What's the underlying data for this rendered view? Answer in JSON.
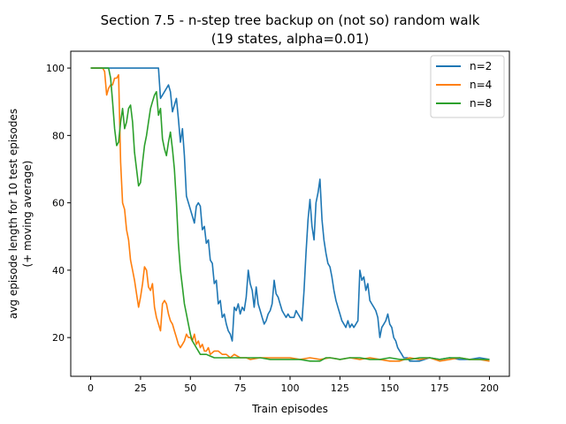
{
  "chart_data": {
    "type": "line",
    "title": "Section 7.5 - n-step tree backup on (not so) random walk",
    "subtitle": "(19 states, alpha=0.01)",
    "xlabel": "Train episodes",
    "ylabel_line1": "avg episode length for 10 test episodes",
    "ylabel_line2": "(+ moving average)",
    "xlim": [
      -10,
      210
    ],
    "ylim": [
      8.5,
      105
    ],
    "xticks": [
      0,
      25,
      50,
      75,
      100,
      125,
      150,
      175,
      200
    ],
    "yticks": [
      20,
      40,
      60,
      80,
      100
    ],
    "grid": false,
    "legend_position": "top-right",
    "series": [
      {
        "name": "n=2",
        "color": "#1f77b4",
        "points": [
          [
            0,
            100
          ],
          [
            10,
            100
          ],
          [
            20,
            100
          ],
          [
            30,
            100
          ],
          [
            34,
            100
          ],
          [
            35,
            91
          ],
          [
            37,
            93
          ],
          [
            39,
            95
          ],
          [
            40,
            93
          ],
          [
            41,
            87
          ],
          [
            42,
            89
          ],
          [
            43,
            91
          ],
          [
            44,
            85
          ],
          [
            45,
            78
          ],
          [
            46,
            82
          ],
          [
            47,
            74
          ],
          [
            48,
            62
          ],
          [
            50,
            58
          ],
          [
            52,
            54
          ],
          [
            53,
            59
          ],
          [
            54,
            60
          ],
          [
            55,
            59
          ],
          [
            56,
            52
          ],
          [
            57,
            53
          ],
          [
            58,
            48
          ],
          [
            59,
            49
          ],
          [
            60,
            43
          ],
          [
            61,
            42
          ],
          [
            62,
            36
          ],
          [
            63,
            37
          ],
          [
            64,
            30
          ],
          [
            65,
            31
          ],
          [
            66,
            26
          ],
          [
            67,
            27
          ],
          [
            68,
            24
          ],
          [
            69,
            22
          ],
          [
            70,
            21
          ],
          [
            71,
            19
          ],
          [
            72,
            29
          ],
          [
            73,
            28
          ],
          [
            74,
            30
          ],
          [
            75,
            27
          ],
          [
            76,
            29
          ],
          [
            77,
            28
          ],
          [
            78,
            32
          ],
          [
            79,
            40
          ],
          [
            80,
            36
          ],
          [
            81,
            34
          ],
          [
            82,
            29
          ],
          [
            83,
            35
          ],
          [
            84,
            30
          ],
          [
            85,
            28
          ],
          [
            86,
            26
          ],
          [
            87,
            24
          ],
          [
            88,
            25
          ],
          [
            89,
            27
          ],
          [
            90,
            28
          ],
          [
            91,
            30
          ],
          [
            92,
            37
          ],
          [
            93,
            33
          ],
          [
            94,
            32
          ],
          [
            95,
            30
          ],
          [
            96,
            28
          ],
          [
            97,
            27
          ],
          [
            98,
            26
          ],
          [
            99,
            27
          ],
          [
            100,
            26
          ],
          [
            102,
            26
          ],
          [
            103,
            28
          ],
          [
            104,
            27
          ],
          [
            105,
            26
          ],
          [
            106,
            25
          ],
          [
            107,
            34
          ],
          [
            108,
            45
          ],
          [
            109,
            55
          ],
          [
            110,
            61
          ],
          [
            111,
            53
          ],
          [
            112,
            49
          ],
          [
            113,
            60
          ],
          [
            114,
            63
          ],
          [
            115,
            67
          ],
          [
            116,
            55
          ],
          [
            117,
            49
          ],
          [
            118,
            45
          ],
          [
            119,
            42
          ],
          [
            120,
            41
          ],
          [
            121,
            38
          ],
          [
            122,
            34
          ],
          [
            123,
            31
          ],
          [
            124,
            29
          ],
          [
            125,
            27
          ],
          [
            126,
            25
          ],
          [
            127,
            24
          ],
          [
            128,
            23
          ],
          [
            129,
            25
          ],
          [
            130,
            23
          ],
          [
            131,
            24
          ],
          [
            132,
            23
          ],
          [
            133,
            24
          ],
          [
            134,
            25
          ],
          [
            135,
            40
          ],
          [
            136,
            37
          ],
          [
            137,
            38
          ],
          [
            138,
            34
          ],
          [
            139,
            36
          ],
          [
            140,
            31
          ],
          [
            141,
            30
          ],
          [
            142,
            29
          ],
          [
            143,
            28
          ],
          [
            144,
            26
          ],
          [
            145,
            20
          ],
          [
            146,
            23
          ],
          [
            147,
            24
          ],
          [
            148,
            25
          ],
          [
            149,
            27
          ],
          [
            150,
            24
          ],
          [
            151,
            23
          ],
          [
            152,
            20
          ],
          [
            153,
            19
          ],
          [
            154,
            17
          ],
          [
            155,
            16
          ],
          [
            156,
            15
          ],
          [
            157,
            14
          ],
          [
            158,
            14
          ],
          [
            159,
            14
          ],
          [
            160,
            13
          ],
          [
            165,
            13
          ],
          [
            170,
            14
          ],
          [
            175,
            13.5
          ],
          [
            180,
            14
          ],
          [
            185,
            13.5
          ],
          [
            190,
            13.5
          ],
          [
            195,
            14
          ],
          [
            200,
            13.5
          ]
        ]
      },
      {
        "name": "n=4",
        "color": "#ff7f0e",
        "points": [
          [
            0,
            100
          ],
          [
            5,
            100
          ],
          [
            6,
            100
          ],
          [
            7,
            99
          ],
          [
            8,
            92
          ],
          [
            9,
            94
          ],
          [
            10,
            95
          ],
          [
            11,
            95
          ],
          [
            12,
            97
          ],
          [
            13,
            97
          ],
          [
            14,
            98
          ],
          [
            15,
            72
          ],
          [
            16,
            60
          ],
          [
            17,
            58
          ],
          [
            18,
            52
          ],
          [
            19,
            49
          ],
          [
            20,
            43
          ],
          [
            21,
            40
          ],
          [
            22,
            37
          ],
          [
            23,
            33
          ],
          [
            24,
            29
          ],
          [
            25,
            32
          ],
          [
            26,
            36
          ],
          [
            27,
            41
          ],
          [
            28,
            40
          ],
          [
            29,
            35
          ],
          [
            30,
            34
          ],
          [
            31,
            36
          ],
          [
            32,
            29
          ],
          [
            33,
            26
          ],
          [
            34,
            24
          ],
          [
            35,
            22
          ],
          [
            36,
            30
          ],
          [
            37,
            31
          ],
          [
            38,
            30
          ],
          [
            39,
            27
          ],
          [
            40,
            25
          ],
          [
            41,
            24
          ],
          [
            42,
            22
          ],
          [
            43,
            20
          ],
          [
            44,
            18
          ],
          [
            45,
            17
          ],
          [
            46,
            18
          ],
          [
            47,
            19
          ],
          [
            48,
            21
          ],
          [
            49,
            20
          ],
          [
            50,
            20
          ],
          [
            51,
            19
          ],
          [
            52,
            21
          ],
          [
            53,
            18
          ],
          [
            54,
            19
          ],
          [
            55,
            17
          ],
          [
            56,
            18
          ],
          [
            57,
            16
          ],
          [
            58,
            16
          ],
          [
            59,
            17
          ],
          [
            60,
            15
          ],
          [
            62,
            16
          ],
          [
            64,
            16
          ],
          [
            66,
            15
          ],
          [
            68,
            15
          ],
          [
            70,
            14
          ],
          [
            72,
            15
          ],
          [
            75,
            14
          ],
          [
            78,
            14
          ],
          [
            80,
            13.5
          ],
          [
            85,
            14
          ],
          [
            90,
            14
          ],
          [
            95,
            14
          ],
          [
            100,
            14
          ],
          [
            105,
            13.5
          ],
          [
            110,
            14
          ],
          [
            115,
            13.5
          ],
          [
            120,
            14
          ],
          [
            125,
            13.5
          ],
          [
            130,
            14
          ],
          [
            135,
            13.5
          ],
          [
            140,
            14
          ],
          [
            145,
            13.5
          ],
          [
            150,
            13
          ],
          [
            155,
            13
          ],
          [
            160,
            14
          ],
          [
            165,
            13.5
          ],
          [
            170,
            14
          ],
          [
            175,
            13
          ],
          [
            180,
            13.5
          ],
          [
            185,
            14
          ],
          [
            190,
            13.5
          ],
          [
            195,
            13.5
          ],
          [
            200,
            13
          ]
        ]
      },
      {
        "name": "n=8",
        "color": "#2ca02c",
        "points": [
          [
            0,
            100
          ],
          [
            5,
            100
          ],
          [
            8,
            100
          ],
          [
            9,
            100
          ],
          [
            10,
            97
          ],
          [
            11,
            90
          ],
          [
            12,
            82
          ],
          [
            13,
            77
          ],
          [
            14,
            78
          ],
          [
            15,
            84
          ],
          [
            16,
            88
          ],
          [
            17,
            82
          ],
          [
            18,
            84
          ],
          [
            19,
            88
          ],
          [
            20,
            89
          ],
          [
            21,
            84
          ],
          [
            22,
            75
          ],
          [
            23,
            70
          ],
          [
            24,
            65
          ],
          [
            25,
            66
          ],
          [
            26,
            72
          ],
          [
            27,
            77
          ],
          [
            28,
            80
          ],
          [
            29,
            84
          ],
          [
            30,
            88
          ],
          [
            31,
            90
          ],
          [
            32,
            92
          ],
          [
            33,
            93
          ],
          [
            34,
            86
          ],
          [
            35,
            88
          ],
          [
            36,
            79
          ],
          [
            37,
            76
          ],
          [
            38,
            74
          ],
          [
            39,
            78
          ],
          [
            40,
            81
          ],
          [
            41,
            76
          ],
          [
            42,
            70
          ],
          [
            43,
            60
          ],
          [
            44,
            48
          ],
          [
            45,
            40
          ],
          [
            46,
            35
          ],
          [
            47,
            30
          ],
          [
            48,
            27
          ],
          [
            49,
            24
          ],
          [
            50,
            21
          ],
          [
            51,
            19
          ],
          [
            52,
            18
          ],
          [
            53,
            17
          ],
          [
            54,
            16
          ],
          [
            55,
            15
          ],
          [
            56,
            15
          ],
          [
            58,
            15
          ],
          [
            60,
            14.5
          ],
          [
            62,
            14
          ],
          [
            65,
            14
          ],
          [
            70,
            14
          ],
          [
            75,
            14
          ],
          [
            80,
            14
          ],
          [
            85,
            14
          ],
          [
            90,
            13.5
          ],
          [
            95,
            13.5
          ],
          [
            100,
            13.5
          ],
          [
            105,
            13.5
          ],
          [
            110,
            13
          ],
          [
            115,
            13
          ],
          [
            118,
            14
          ],
          [
            120,
            14
          ],
          [
            125,
            13.5
          ],
          [
            130,
            14
          ],
          [
            135,
            14
          ],
          [
            140,
            13.5
          ],
          [
            145,
            13.5
          ],
          [
            150,
            14
          ],
          [
            155,
            13.5
          ],
          [
            160,
            13.5
          ],
          [
            165,
            14
          ],
          [
            170,
            14
          ],
          [
            175,
            13.5
          ],
          [
            180,
            14
          ],
          [
            185,
            14
          ],
          [
            190,
            13.5
          ],
          [
            195,
            13.5
          ],
          [
            200,
            13.5
          ]
        ]
      }
    ]
  }
}
